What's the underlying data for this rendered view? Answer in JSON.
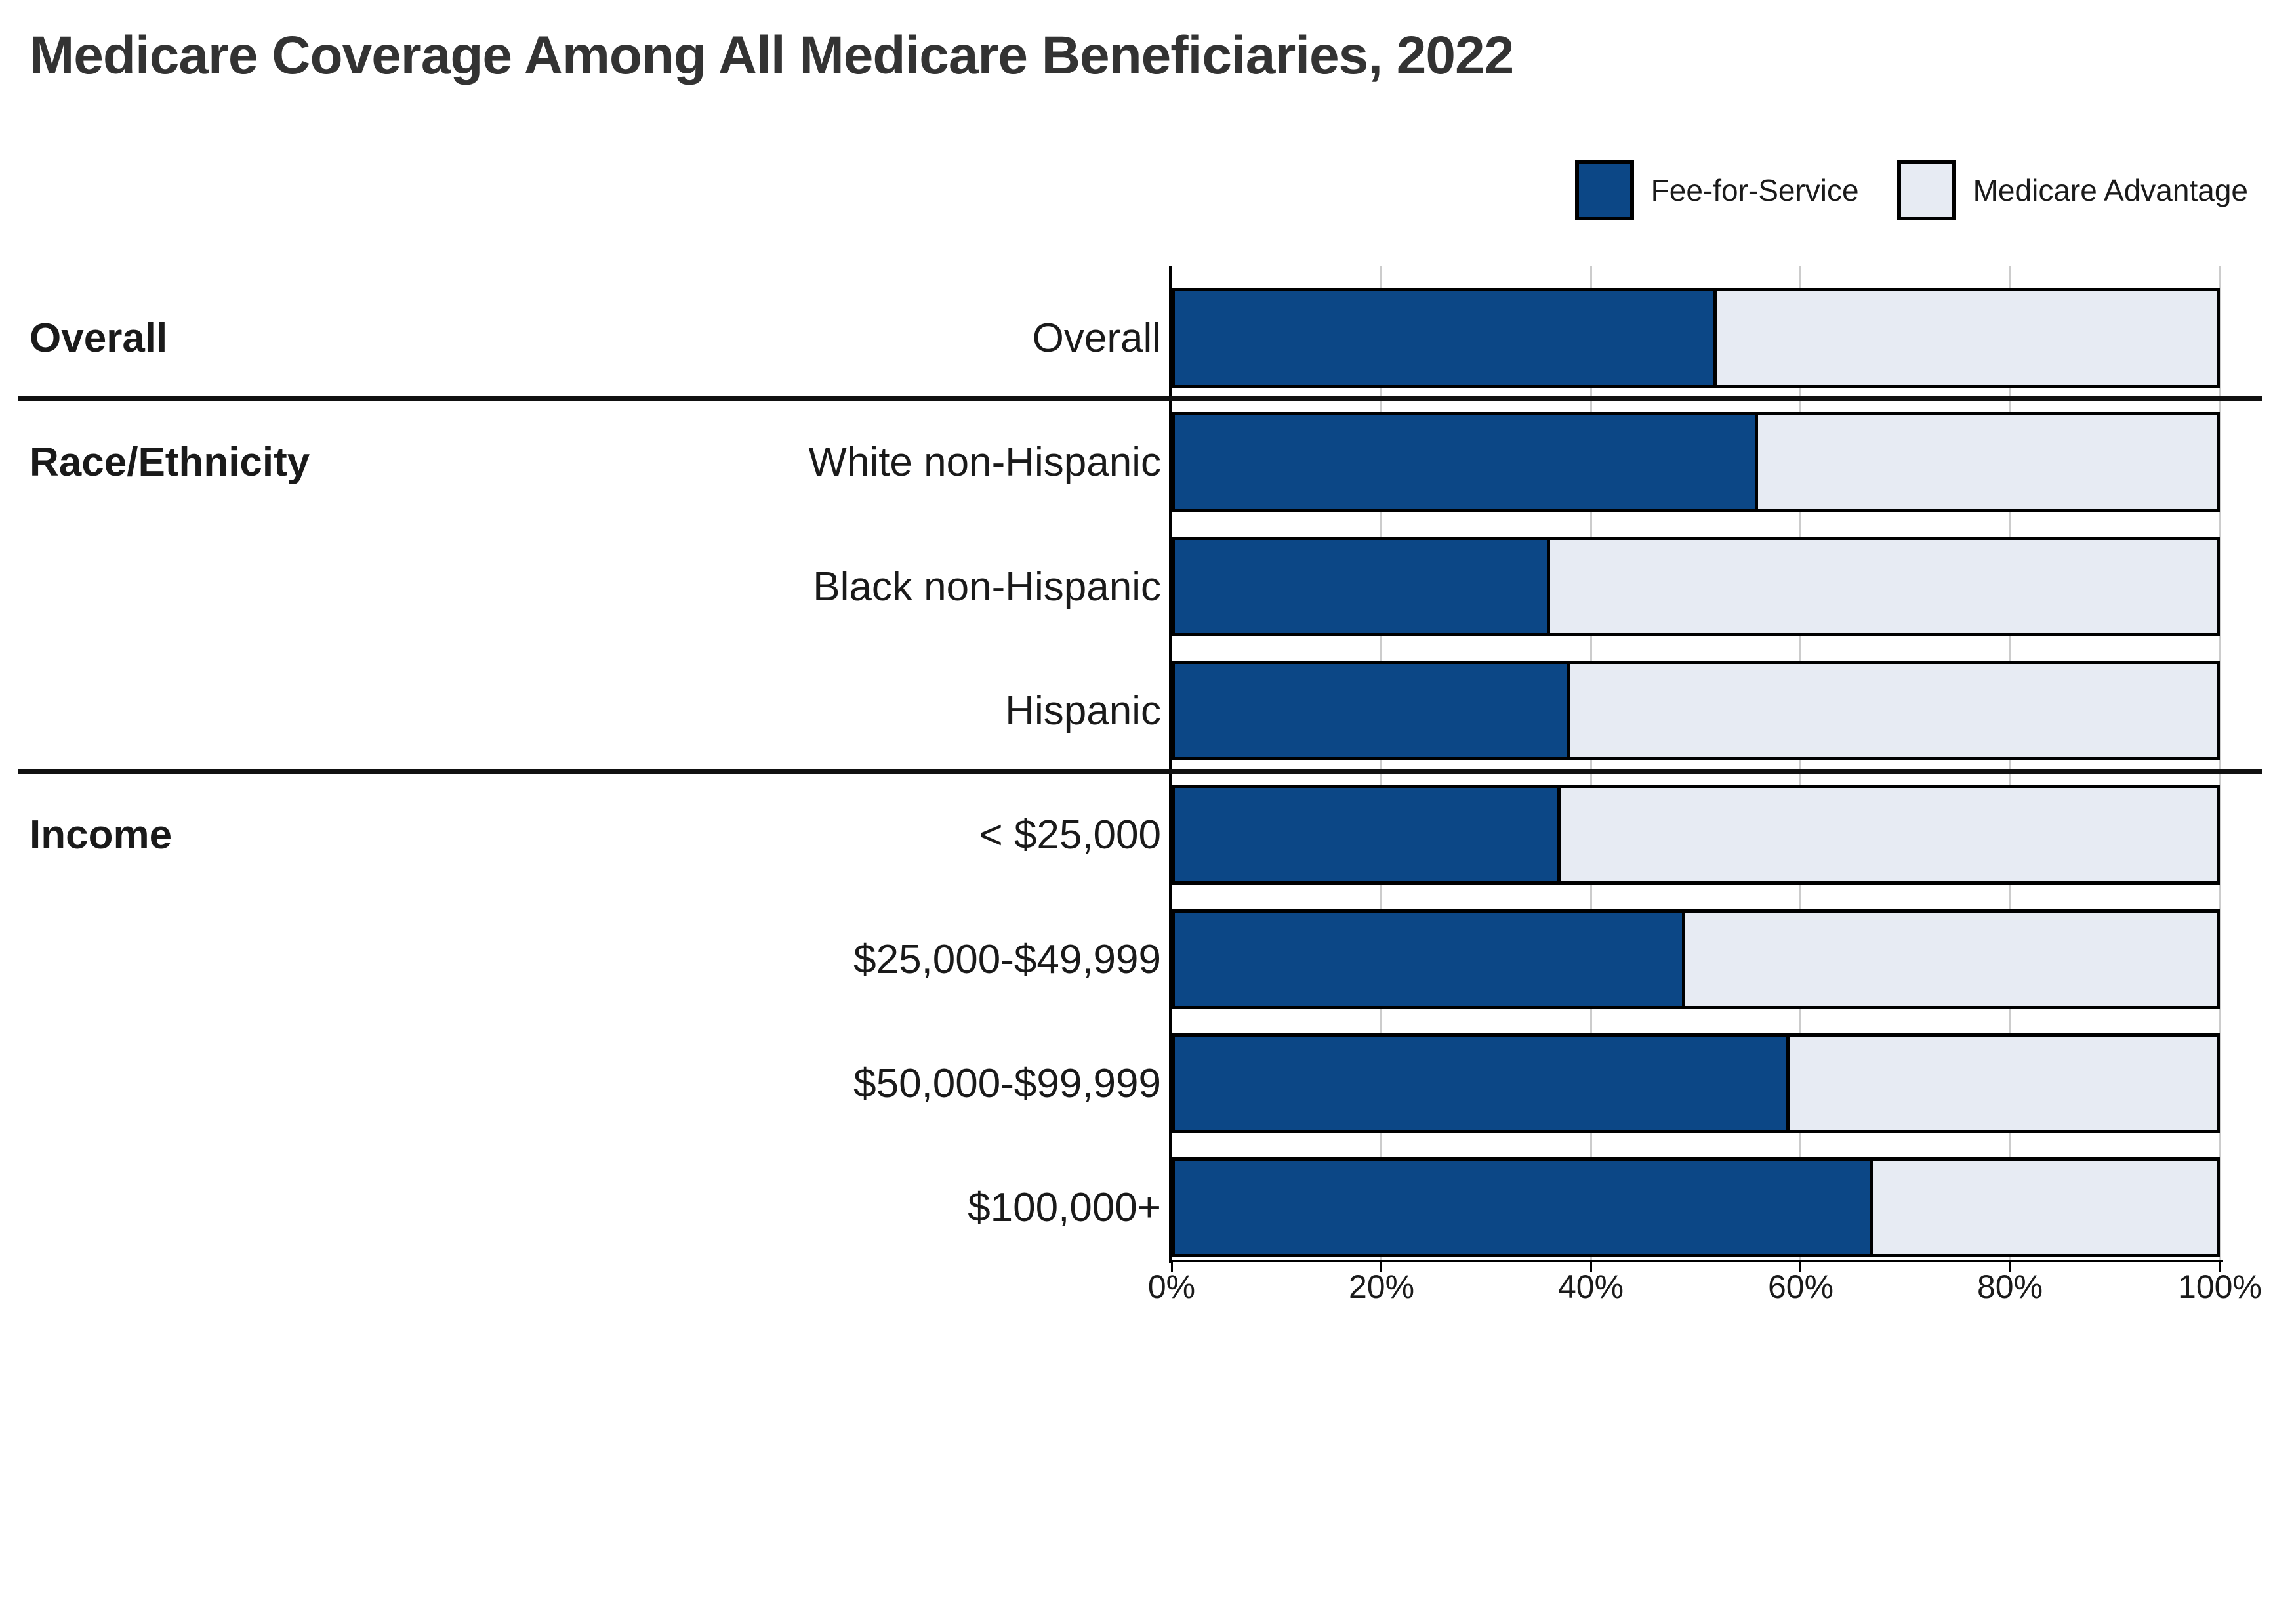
{
  "title": "Medicare Coverage Among All Medicare Beneficiaries, 2022",
  "legend": {
    "items": [
      {
        "label": "Fee-for-Service",
        "color": "#0C4786"
      },
      {
        "label": "Medicare Advantage",
        "color": "#E7EBF3"
      }
    ]
  },
  "chart_data": {
    "type": "bar",
    "orientation": "horizontal",
    "stacked": true,
    "title": "Medicare Coverage Among All Medicare Beneficiaries, 2022",
    "unit": "percent",
    "categories": [
      "Overall",
      "White non-Hispanic",
      "Black non-Hispanic",
      "Hispanic",
      "< $25,000",
      "$25,000-$49,999",
      "$50,000-$99,999",
      "$100,000+"
    ],
    "series": [
      {
        "name": "Fee-for-Service",
        "color": "#0C4786",
        "values": [
          52,
          56,
          36,
          38,
          37,
          49,
          59,
          67
        ]
      },
      {
        "name": "Medicare Advantage",
        "color": "#E7EBF3",
        "values": [
          48,
          44,
          64,
          62,
          63,
          51,
          41,
          33
        ]
      }
    ],
    "groups": [
      {
        "label": "Overall",
        "start": 0,
        "count": 1
      },
      {
        "label": "Race/Ethnicity",
        "start": 1,
        "count": 3
      },
      {
        "label": "Income",
        "start": 4,
        "count": 4
      }
    ],
    "xlim": [
      0,
      100
    ],
    "x_ticks": [
      "0%",
      "20%",
      "40%",
      "60%",
      "80%",
      "100%"
    ],
    "x_tick_values": [
      0,
      20,
      40,
      60,
      80,
      100
    ],
    "grid": true,
    "legend_position": "top-right",
    "bar_border_color": "#000000"
  },
  "colors": {
    "fee_for_service": "#0C4786",
    "medicare_advantage": "#E7EBF3",
    "gridline": "#CCCCCC",
    "axis": "#000000",
    "title_text": "#333333",
    "label_text": "#1A1A1A",
    "divider": "#111111",
    "background": "#FFFFFF"
  }
}
